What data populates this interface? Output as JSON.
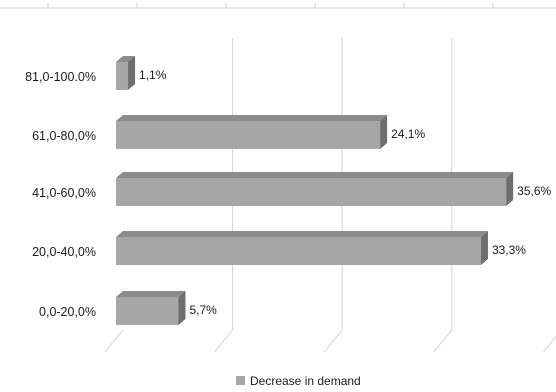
{
  "chart_data": {
    "type": "bar",
    "orientation": "horizontal",
    "style": "3d",
    "categories": [
      "81,0-100.0%",
      "61,0-80,0%",
      "41,0-60,0%",
      "20,0-40,0%",
      "0,0-20,0%"
    ],
    "series": [
      {
        "name": "Decrease in demand",
        "values": [
          1.1,
          24.1,
          35.6,
          33.3,
          5.7
        ],
        "data_labels": [
          "1,1%",
          "24,1%",
          "35,6%",
          "33,3%",
          "5,7%"
        ],
        "color": "#a6a6a6"
      }
    ],
    "xlim": [
      0,
      40
    ],
    "grid": true,
    "legend": "bottom-center",
    "colors": {
      "bar_front": "#a6a6a6",
      "bar_top": "#8c8c8c",
      "bar_side": "#6e6e6e",
      "grid": "#d9d9d9"
    }
  }
}
